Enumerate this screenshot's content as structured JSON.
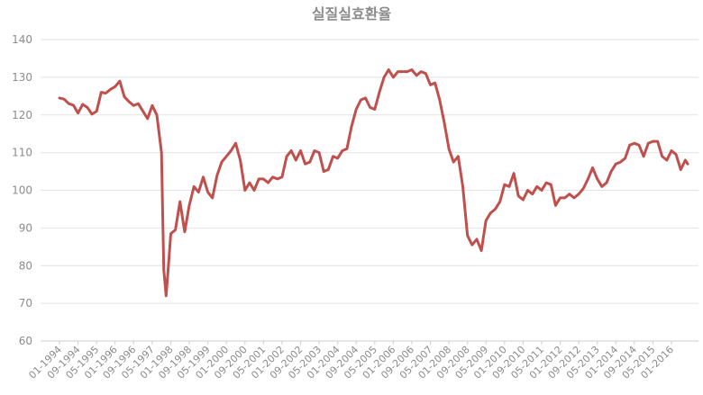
{
  "chart_data": {
    "type": "line",
    "title": "실질실효환율",
    "xlabel": "",
    "ylabel": "",
    "ylim": [
      60,
      140
    ],
    "yticks": [
      60,
      70,
      80,
      90,
      100,
      110,
      120,
      130,
      140
    ],
    "grid": true,
    "legend": "none",
    "x_tick_labels": [
      "01-1994",
      "09-1994",
      "05-1995",
      "01-1996",
      "09-1996",
      "05-1997",
      "01-1998",
      "09-1998",
      "05-1999",
      "01-2000",
      "09-2000",
      "05-2001",
      "01-2002",
      "09-2002",
      "05-2003",
      "01-2004",
      "09-2004",
      "05-2005",
      "01-2006",
      "09-2006",
      "05-2007",
      "01-2008",
      "09-2008",
      "05-2009",
      "01-2010",
      "09-2010",
      "05-2011",
      "01-2012",
      "09-2012",
      "05-2013",
      "01-2014",
      "09-2014",
      "05-2015",
      "01-2016"
    ],
    "series": [
      {
        "color": "#c0504d",
        "points": [
          [
            "01-1994",
            124.5
          ],
          [
            "03-1994",
            124.2
          ],
          [
            "05-1994",
            123.0
          ],
          [
            "07-1994",
            122.6
          ],
          [
            "09-1994",
            120.5
          ],
          [
            "11-1994",
            122.8
          ],
          [
            "01-1995",
            122.0
          ],
          [
            "03-1995",
            120.2
          ],
          [
            "05-1995",
            121.0
          ],
          [
            "07-1995",
            126.0
          ],
          [
            "09-1995",
            125.8
          ],
          [
            "11-1995",
            126.8
          ],
          [
            "01-1996",
            127.5
          ],
          [
            "03-1996",
            129.0
          ],
          [
            "05-1996",
            124.8
          ],
          [
            "07-1996",
            123.5
          ],
          [
            "09-1996",
            122.5
          ],
          [
            "11-1996",
            123.0
          ],
          [
            "01-1997",
            121.0
          ],
          [
            "03-1997",
            119.0
          ],
          [
            "05-1997",
            122.5
          ],
          [
            "07-1997",
            120.0
          ],
          [
            "09-1997",
            110.0
          ],
          [
            "10-1997",
            79.0
          ],
          [
            "11-1997",
            72.0
          ],
          [
            "12-1997",
            80.0
          ],
          [
            "01-1998",
            88.5
          ],
          [
            "03-1998",
            89.5
          ],
          [
            "05-1998",
            97.0
          ],
          [
            "07-1998",
            89.0
          ],
          [
            "09-1998",
            96.0
          ],
          [
            "11-1998",
            101.0
          ],
          [
            "01-1999",
            99.5
          ],
          [
            "03-1999",
            103.5
          ],
          [
            "05-1999",
            99.5
          ],
          [
            "07-1999",
            98.0
          ],
          [
            "09-1999",
            104.0
          ],
          [
            "11-1999",
            107.5
          ],
          [
            "01-2000",
            109.0
          ],
          [
            "03-2000",
            110.5
          ],
          [
            "05-2000",
            112.5
          ],
          [
            "07-2000",
            108.0
          ],
          [
            "09-2000",
            100.0
          ],
          [
            "11-2000",
            102.0
          ],
          [
            "01-2001",
            100.0
          ],
          [
            "03-2001",
            103.0
          ],
          [
            "05-2001",
            103.0
          ],
          [
            "07-2001",
            102.0
          ],
          [
            "09-2001",
            103.5
          ],
          [
            "11-2001",
            103.0
          ],
          [
            "01-2002",
            103.5
          ],
          [
            "03-2002",
            109.0
          ],
          [
            "05-2002",
            110.5
          ],
          [
            "07-2002",
            108.0
          ],
          [
            "09-2002",
            110.5
          ],
          [
            "11-2002",
            107.0
          ],
          [
            "01-2003",
            107.5
          ],
          [
            "03-2003",
            110.5
          ],
          [
            "05-2003",
            110.0
          ],
          [
            "07-2003",
            105.0
          ],
          [
            "09-2003",
            105.5
          ],
          [
            "11-2003",
            109.0
          ],
          [
            "01-2004",
            108.5
          ],
          [
            "03-2004",
            110.5
          ],
          [
            "05-2004",
            111.0
          ],
          [
            "07-2004",
            117.0
          ],
          [
            "09-2004",
            121.5
          ],
          [
            "11-2004",
            124.0
          ],
          [
            "01-2005",
            124.5
          ],
          [
            "03-2005",
            122.0
          ],
          [
            "05-2005",
            121.5
          ],
          [
            "07-2005",
            126.0
          ],
          [
            "09-2005",
            130.0
          ],
          [
            "11-2005",
            132.0
          ],
          [
            "01-2006",
            130.0
          ],
          [
            "03-2006",
            131.5
          ],
          [
            "05-2006",
            131.5
          ],
          [
            "07-2006",
            131.5
          ],
          [
            "09-2006",
            132.0
          ],
          [
            "11-2006",
            130.5
          ],
          [
            "01-2007",
            131.5
          ],
          [
            "03-2007",
            131.0
          ],
          [
            "05-2007",
            128.0
          ],
          [
            "07-2007",
            128.5
          ],
          [
            "09-2007",
            124.0
          ],
          [
            "11-2007",
            118.0
          ],
          [
            "01-2008",
            111.0
          ],
          [
            "03-2008",
            107.5
          ],
          [
            "05-2008",
            109.0
          ],
          [
            "07-2008",
            101.0
          ],
          [
            "09-2008",
            88.0
          ],
          [
            "11-2008",
            85.5
          ],
          [
            "01-2009",
            87.0
          ],
          [
            "03-2009",
            84.0
          ],
          [
            "05-2009",
            92.0
          ],
          [
            "07-2009",
            94.0
          ],
          [
            "09-2009",
            95.0
          ],
          [
            "11-2009",
            97.0
          ],
          [
            "01-2010",
            101.5
          ],
          [
            "03-2010",
            101.0
          ],
          [
            "05-2010",
            104.5
          ],
          [
            "07-2010",
            98.5
          ],
          [
            "09-2010",
            97.5
          ],
          [
            "11-2010",
            100.0
          ],
          [
            "01-2011",
            99.0
          ],
          [
            "03-2011",
            101.0
          ],
          [
            "05-2011",
            100.0
          ],
          [
            "07-2011",
            102.0
          ],
          [
            "09-2011",
            101.5
          ],
          [
            "11-2011",
            96.0
          ],
          [
            "01-2012",
            98.0
          ],
          [
            "03-2012",
            98.0
          ],
          [
            "05-2012",
            99.0
          ],
          [
            "07-2012",
            98.0
          ],
          [
            "09-2012",
            99.0
          ],
          [
            "11-2012",
            100.5
          ],
          [
            "01-2013",
            103.0
          ],
          [
            "03-2013",
            106.0
          ],
          [
            "05-2013",
            103.0
          ],
          [
            "07-2013",
            101.0
          ],
          [
            "09-2013",
            102.0
          ],
          [
            "11-2013",
            105.0
          ],
          [
            "01-2014",
            107.0
          ],
          [
            "03-2014",
            107.5
          ],
          [
            "05-2014",
            108.5
          ],
          [
            "07-2014",
            112.0
          ],
          [
            "09-2014",
            112.5
          ],
          [
            "11-2014",
            112.0
          ],
          [
            "01-2015",
            109.0
          ],
          [
            "03-2015",
            112.5
          ],
          [
            "05-2015",
            113.0
          ],
          [
            "07-2015",
            113.0
          ],
          [
            "09-2015",
            109.0
          ],
          [
            "11-2015",
            108.0
          ],
          [
            "01-2016",
            110.5
          ],
          [
            "03-2016",
            109.5
          ],
          [
            "05-2016",
            105.5
          ],
          [
            "07-2016",
            108.0
          ],
          [
            "08-2016",
            107.0
          ]
        ]
      }
    ]
  }
}
